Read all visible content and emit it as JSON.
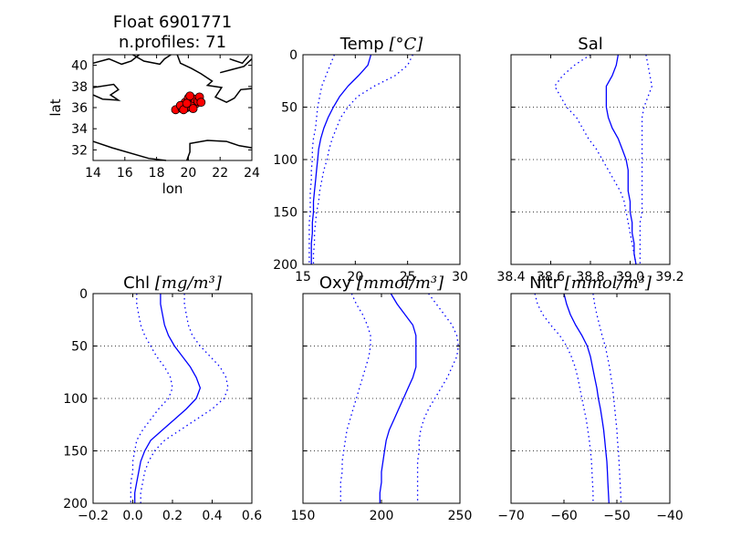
{
  "chart_data": [
    {
      "type": "map",
      "title_line1": "Float 6901771",
      "title_line2": "n.profiles: 71",
      "xlabel": "lon",
      "ylabel": "lat",
      "xlim": [
        14,
        24
      ],
      "ylim": [
        31,
        41
      ],
      "xticks": [
        "14",
        "16",
        "18",
        "20",
        "22",
        "24"
      ],
      "yticks": [
        "32",
        "34",
        "36",
        "38",
        "40"
      ],
      "marker_color": "#ff0000",
      "points": [
        [
          19.2,
          35.8
        ],
        [
          19.6,
          35.9
        ],
        [
          19.9,
          36.0
        ],
        [
          20.1,
          36.1
        ],
        [
          20.3,
          36.3
        ],
        [
          20.5,
          36.4
        ],
        [
          20.2,
          36.6
        ],
        [
          19.8,
          36.5
        ],
        [
          20.0,
          36.9
        ],
        [
          20.4,
          36.8
        ],
        [
          20.6,
          36.6
        ],
        [
          20.3,
          35.9
        ],
        [
          19.5,
          36.2
        ],
        [
          20.7,
          37.0
        ],
        [
          20.1,
          37.1
        ],
        [
          19.7,
          35.8
        ],
        [
          20.8,
          36.5
        ],
        [
          19.9,
          36.4
        ]
      ]
    },
    {
      "type": "line",
      "title": "Temp ",
      "title_math": "[°C]",
      "xlim": [
        15,
        30
      ],
      "ylim": [
        200,
        0
      ],
      "xticks": [
        "15",
        "20",
        "25",
        "30"
      ],
      "yticks": [
        "0",
        "50",
        "100",
        "150",
        "200"
      ],
      "grid": "y-dotted",
      "mean": [
        [
          21.5,
          0
        ],
        [
          21.2,
          10
        ],
        [
          20.3,
          20
        ],
        [
          19.3,
          30
        ],
        [
          18.5,
          40
        ],
        [
          17.9,
          50
        ],
        [
          17.4,
          60
        ],
        [
          17.0,
          70
        ],
        [
          16.7,
          80
        ],
        [
          16.5,
          90
        ],
        [
          16.4,
          100
        ],
        [
          16.3,
          110
        ],
        [
          16.2,
          120
        ],
        [
          16.1,
          130
        ],
        [
          16.0,
          140
        ],
        [
          16.0,
          150
        ],
        [
          15.9,
          160
        ],
        [
          15.9,
          170
        ],
        [
          15.8,
          180
        ],
        [
          15.8,
          190
        ],
        [
          15.8,
          200
        ]
      ],
      "lower": [
        [
          18.0,
          0
        ],
        [
          17.6,
          10
        ],
        [
          17.2,
          20
        ],
        [
          16.8,
          30
        ],
        [
          16.6,
          40
        ],
        [
          16.4,
          50
        ],
        [
          16.3,
          60
        ],
        [
          16.2,
          70
        ],
        [
          16.0,
          80
        ],
        [
          15.9,
          90
        ],
        [
          15.9,
          100
        ],
        [
          15.8,
          110
        ],
        [
          15.8,
          120
        ],
        [
          15.7,
          130
        ],
        [
          15.7,
          140
        ],
        [
          15.7,
          150
        ],
        [
          15.6,
          160
        ],
        [
          15.6,
          170
        ],
        [
          15.6,
          180
        ],
        [
          15.6,
          190
        ],
        [
          15.6,
          200
        ]
      ],
      "upper": [
        [
          25.5,
          0
        ],
        [
          25.0,
          10
        ],
        [
          23.8,
          20
        ],
        [
          21.8,
          30
        ],
        [
          20.2,
          40
        ],
        [
          19.3,
          50
        ],
        [
          18.6,
          60
        ],
        [
          18.2,
          70
        ],
        [
          17.8,
          80
        ],
        [
          17.5,
          90
        ],
        [
          17.3,
          100
        ],
        [
          17.0,
          110
        ],
        [
          16.8,
          120
        ],
        [
          16.6,
          130
        ],
        [
          16.5,
          140
        ],
        [
          16.3,
          150
        ],
        [
          16.2,
          160
        ],
        [
          16.1,
          170
        ],
        [
          16.1,
          180
        ],
        [
          16.0,
          190
        ],
        [
          16.0,
          200
        ]
      ]
    },
    {
      "type": "line",
      "title": "Sal",
      "title_math": "",
      "xlim": [
        38.4,
        39.2
      ],
      "ylim": [
        200,
        0
      ],
      "xticks": [
        "38.4",
        "38.6",
        "38.8",
        "39.0",
        "39.2"
      ],
      "yticks": [],
      "grid": "y-dotted",
      "mean": [
        [
          38.94,
          0
        ],
        [
          38.93,
          10
        ],
        [
          38.91,
          20
        ],
        [
          38.88,
          30
        ],
        [
          38.88,
          40
        ],
        [
          38.88,
          50
        ],
        [
          38.89,
          60
        ],
        [
          38.91,
          70
        ],
        [
          38.94,
          80
        ],
        [
          38.96,
          90
        ],
        [
          38.98,
          100
        ],
        [
          38.99,
          110
        ],
        [
          38.99,
          120
        ],
        [
          38.99,
          130
        ],
        [
          39.0,
          140
        ],
        [
          39.0,
          150
        ],
        [
          39.01,
          160
        ],
        [
          39.01,
          170
        ],
        [
          39.02,
          180
        ],
        [
          39.02,
          190
        ],
        [
          39.03,
          200
        ]
      ],
      "lower": [
        [
          38.8,
          0
        ],
        [
          38.72,
          10
        ],
        [
          38.66,
          20
        ],
        [
          38.62,
          30
        ],
        [
          38.65,
          40
        ],
        [
          38.68,
          50
        ],
        [
          38.73,
          60
        ],
        [
          38.76,
          70
        ],
        [
          38.79,
          80
        ],
        [
          38.83,
          90
        ],
        [
          38.86,
          100
        ],
        [
          38.89,
          110
        ],
        [
          38.92,
          120
        ],
        [
          38.95,
          130
        ],
        [
          38.97,
          140
        ],
        [
          38.98,
          150
        ],
        [
          38.99,
          160
        ],
        [
          39.0,
          170
        ],
        [
          39.01,
          180
        ],
        [
          39.02,
          190
        ],
        [
          39.03,
          200
        ]
      ],
      "upper": [
        [
          39.08,
          0
        ],
        [
          39.09,
          10
        ],
        [
          39.1,
          20
        ],
        [
          39.11,
          30
        ],
        [
          39.09,
          40
        ],
        [
          39.07,
          50
        ],
        [
          39.06,
          60
        ],
        [
          39.06,
          70
        ],
        [
          39.06,
          80
        ],
        [
          39.06,
          90
        ],
        [
          39.06,
          100
        ],
        [
          39.06,
          110
        ],
        [
          39.06,
          120
        ],
        [
          39.06,
          130
        ],
        [
          39.06,
          140
        ],
        [
          39.06,
          150
        ],
        [
          39.05,
          160
        ],
        [
          39.05,
          170
        ],
        [
          39.05,
          180
        ],
        [
          39.05,
          190
        ],
        [
          39.05,
          200
        ]
      ]
    },
    {
      "type": "line",
      "title": "Chl ",
      "title_math": "[mg/m³]",
      "xlim": [
        -0.2,
        0.6
      ],
      "ylim": [
        200,
        0
      ],
      "xticks": [
        "−0.2",
        "0.0",
        "0.2",
        "0.4",
        "0.6"
      ],
      "yticks": [
        "0",
        "50",
        "100",
        "150",
        "200"
      ],
      "grid": "y-dotted",
      "mean": [
        [
          0.14,
          0
        ],
        [
          0.14,
          10
        ],
        [
          0.15,
          20
        ],
        [
          0.16,
          30
        ],
        [
          0.18,
          40
        ],
        [
          0.21,
          50
        ],
        [
          0.25,
          60
        ],
        [
          0.29,
          70
        ],
        [
          0.32,
          80
        ],
        [
          0.34,
          90
        ],
        [
          0.32,
          100
        ],
        [
          0.27,
          110
        ],
        [
          0.21,
          120
        ],
        [
          0.15,
          130
        ],
        [
          0.09,
          140
        ],
        [
          0.06,
          150
        ],
        [
          0.04,
          160
        ],
        [
          0.03,
          170
        ],
        [
          0.02,
          180
        ],
        [
          0.01,
          190
        ],
        [
          0.01,
          200
        ]
      ],
      "lower": [
        [
          0.02,
          0
        ],
        [
          0.02,
          10
        ],
        [
          0.03,
          20
        ],
        [
          0.04,
          30
        ],
        [
          0.06,
          40
        ],
        [
          0.09,
          50
        ],
        [
          0.12,
          60
        ],
        [
          0.16,
          70
        ],
        [
          0.19,
          80
        ],
        [
          0.2,
          90
        ],
        [
          0.18,
          100
        ],
        [
          0.13,
          110
        ],
        [
          0.09,
          120
        ],
        [
          0.05,
          130
        ],
        [
          0.02,
          140
        ],
        [
          0.01,
          150
        ],
        [
          0.0,
          160
        ],
        [
          0.0,
          170
        ],
        [
          -0.01,
          180
        ],
        [
          -0.01,
          190
        ],
        [
          -0.01,
          200
        ]
      ],
      "upper": [
        [
          0.26,
          0
        ],
        [
          0.26,
          10
        ],
        [
          0.27,
          20
        ],
        [
          0.28,
          30
        ],
        [
          0.3,
          40
        ],
        [
          0.34,
          50
        ],
        [
          0.39,
          60
        ],
        [
          0.44,
          70
        ],
        [
          0.47,
          80
        ],
        [
          0.48,
          90
        ],
        [
          0.46,
          100
        ],
        [
          0.4,
          110
        ],
        [
          0.32,
          120
        ],
        [
          0.24,
          130
        ],
        [
          0.16,
          140
        ],
        [
          0.11,
          150
        ],
        [
          0.08,
          160
        ],
        [
          0.06,
          170
        ],
        [
          0.05,
          180
        ],
        [
          0.04,
          190
        ],
        [
          0.04,
          200
        ]
      ]
    },
    {
      "type": "line",
      "title": "Oxy ",
      "title_math": "[mmol/m³]",
      "xlim": [
        150,
        250
      ],
      "ylim": [
        200,
        0
      ],
      "xticks": [
        "150",
        "200",
        "250"
      ],
      "yticks": [],
      "grid": "y-dotted",
      "mean": [
        [
          206,
          0
        ],
        [
          210,
          10
        ],
        [
          215,
          20
        ],
        [
          220,
          30
        ],
        [
          222,
          40
        ],
        [
          222,
          50
        ],
        [
          222,
          60
        ],
        [
          222,
          70
        ],
        [
          220,
          80
        ],
        [
          217,
          90
        ],
        [
          214,
          100
        ],
        [
          211,
          110
        ],
        [
          208,
          120
        ],
        [
          205,
          130
        ],
        [
          203,
          140
        ],
        [
          202,
          150
        ],
        [
          201,
          160
        ],
        [
          200,
          170
        ],
        [
          200,
          180
        ],
        [
          199,
          190
        ],
        [
          199,
          200
        ]
      ],
      "lower": [
        [
          181,
          0
        ],
        [
          184,
          10
        ],
        [
          188,
          20
        ],
        [
          191,
          30
        ],
        [
          193,
          40
        ],
        [
          193,
          50
        ],
        [
          192,
          60
        ],
        [
          190,
          70
        ],
        [
          188,
          80
        ],
        [
          186,
          90
        ],
        [
          184,
          100
        ],
        [
          182,
          110
        ],
        [
          180,
          120
        ],
        [
          178,
          130
        ],
        [
          177,
          140
        ],
        [
          176,
          150
        ],
        [
          175,
          160
        ],
        [
          175,
          170
        ],
        [
          174,
          180
        ],
        [
          174,
          190
        ],
        [
          174,
          200
        ]
      ],
      "upper": [
        [
          230,
          0
        ],
        [
          235,
          10
        ],
        [
          240,
          20
        ],
        [
          245,
          30
        ],
        [
          248,
          40
        ],
        [
          249,
          50
        ],
        [
          248,
          60
        ],
        [
          245,
          70
        ],
        [
          242,
          80
        ],
        [
          238,
          90
        ],
        [
          234,
          100
        ],
        [
          230,
          110
        ],
        [
          227,
          120
        ],
        [
          225,
          130
        ],
        [
          224,
          140
        ],
        [
          224,
          150
        ],
        [
          223,
          160
        ],
        [
          223,
          170
        ],
        [
          223,
          180
        ],
        [
          223,
          190
        ],
        [
          223,
          200
        ]
      ]
    },
    {
      "type": "line",
      "title": "Nitr ",
      "title_math": "[mmol/m³]",
      "xlim": [
        -70,
        -40
      ],
      "ylim": [
        200,
        0
      ],
      "xticks": [
        "−70",
        "−60",
        "−50",
        "−40"
      ],
      "yticks": [],
      "grid": "y-dotted",
      "mean": [
        [
          -60,
          0
        ],
        [
          -59.5,
          10
        ],
        [
          -58.8,
          20
        ],
        [
          -57.8,
          30
        ],
        [
          -56.6,
          40
        ],
        [
          -55.6,
          50
        ],
        [
          -55.0,
          60
        ],
        [
          -54.6,
          70
        ],
        [
          -54.2,
          80
        ],
        [
          -53.8,
          90
        ],
        [
          -53.5,
          100
        ],
        [
          -53.1,
          110
        ],
        [
          -52.8,
          120
        ],
        [
          -52.5,
          130
        ],
        [
          -52.3,
          140
        ],
        [
          -52.1,
          150
        ],
        [
          -51.9,
          160
        ],
        [
          -51.8,
          170
        ],
        [
          -51.7,
          180
        ],
        [
          -51.6,
          190
        ],
        [
          -51.5,
          200
        ]
      ],
      "lower": [
        [
          -65.5,
          0
        ],
        [
          -65.0,
          10
        ],
        [
          -64.0,
          20
        ],
        [
          -62.5,
          30
        ],
        [
          -60.8,
          40
        ],
        [
          -59.5,
          50
        ],
        [
          -58.6,
          60
        ],
        [
          -57.9,
          70
        ],
        [
          -57.4,
          80
        ],
        [
          -57.0,
          90
        ],
        [
          -56.6,
          100
        ],
        [
          -56.2,
          110
        ],
        [
          -55.8,
          120
        ],
        [
          -55.5,
          130
        ],
        [
          -55.2,
          140
        ],
        [
          -55.0,
          150
        ],
        [
          -54.8,
          160
        ],
        [
          -54.7,
          170
        ],
        [
          -54.6,
          180
        ],
        [
          -54.5,
          190
        ],
        [
          -54.5,
          200
        ]
      ],
      "upper": [
        [
          -54.5,
          0
        ],
        [
          -54.2,
          10
        ],
        [
          -53.8,
          20
        ],
        [
          -53.3,
          30
        ],
        [
          -52.8,
          40
        ],
        [
          -52.2,
          50
        ],
        [
          -51.8,
          60
        ],
        [
          -51.4,
          70
        ],
        [
          -51.1,
          80
        ],
        [
          -50.8,
          90
        ],
        [
          -50.6,
          100
        ],
        [
          -50.4,
          110
        ],
        [
          -50.2,
          120
        ],
        [
          -50.0,
          130
        ],
        [
          -49.9,
          140
        ],
        [
          -49.7,
          150
        ],
        [
          -49.6,
          160
        ],
        [
          -49.5,
          170
        ],
        [
          -49.4,
          180
        ],
        [
          -49.3,
          190
        ],
        [
          -49.2,
          200
        ]
      ]
    }
  ]
}
